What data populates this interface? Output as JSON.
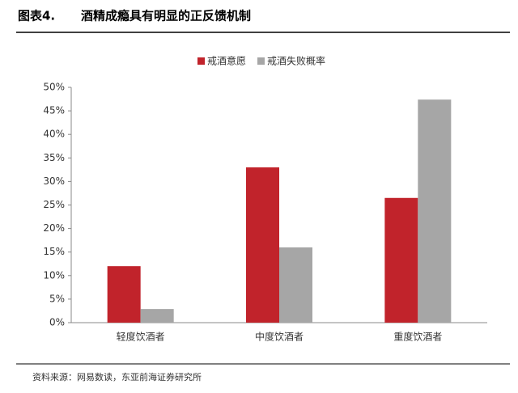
{
  "chart_data": {
    "type": "bar",
    "figure_label": "图表4.",
    "title": "酒精成瘾具有明显的正反馈机制",
    "source": "资料来源：网易数读，东亚前海证券研究所",
    "categories": [
      "轻度饮酒者",
      "中度饮酒者",
      "重度饮酒者"
    ],
    "series": [
      {
        "name": "戒酒意愿",
        "color": "#c1232b",
        "values": [
          12.0,
          33.0,
          26.5
        ]
      },
      {
        "name": "戒酒失败概率",
        "color": "#a6a6a6",
        "values": [
          2.9,
          16.0,
          47.4
        ]
      }
    ],
    "ylim": [
      0,
      50
    ],
    "yticks": [
      {
        "value": 0,
        "label": "0%"
      },
      {
        "value": 5,
        "label": "5%"
      },
      {
        "value": 10,
        "label": "10%"
      },
      {
        "value": 15,
        "label": "15%"
      },
      {
        "value": 20,
        "label": "20%"
      },
      {
        "value": 25,
        "label": "25%"
      },
      {
        "value": 30,
        "label": "30%"
      },
      {
        "value": 35,
        "label": "35%"
      },
      {
        "value": 40,
        "label": "40%"
      },
      {
        "value": 45,
        "label": "45%"
      },
      {
        "value": 50,
        "label": "50%"
      }
    ],
    "legend": "top"
  }
}
